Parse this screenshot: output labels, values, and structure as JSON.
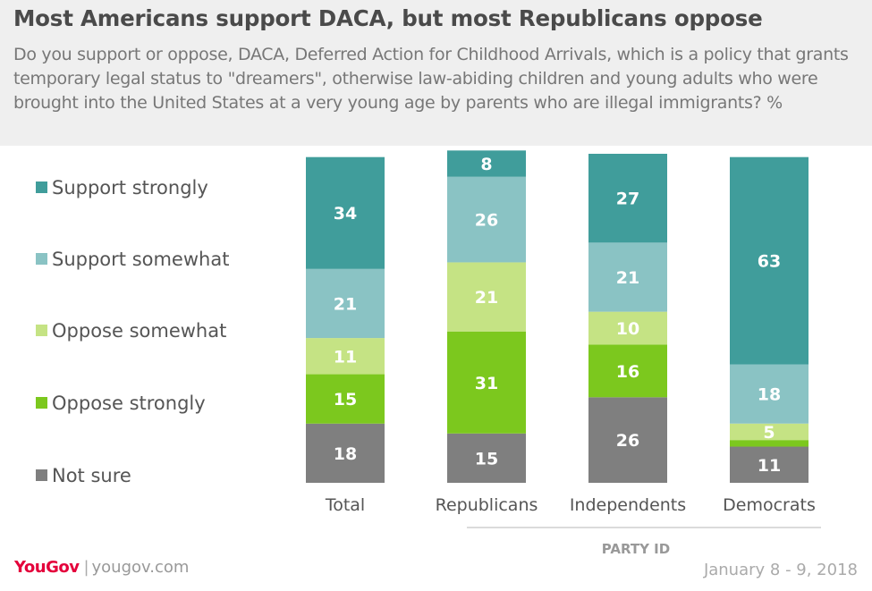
{
  "header": {
    "title": "Most Americans support DACA, but most Republicans oppose",
    "subtitle": "Do you support or oppose, DACA, Deferred Action for Childhood Arrivals, which is a policy that grants temporary legal status to \"dreamers\", otherwise law-abiding children and young adults who were brought into the United States at a very young age by parents who are illegal immigrants? %"
  },
  "footer": {
    "brand": "YouGov",
    "separator": "|",
    "url": "yougov.com",
    "date": "January 8 - 9, 2018"
  },
  "chart_data": {
    "type": "bar",
    "stacked": true,
    "categories": [
      "Total",
      "Republicans",
      "Independents",
      "Democrats"
    ],
    "group_label": "PARTY ID",
    "grouped_categories": [
      "Republicans",
      "Independents",
      "Democrats"
    ],
    "series": [
      {
        "name": "Support strongly",
        "color": "#409d9b",
        "label_color": "#ffffff",
        "values": [
          34,
          8,
          27,
          63
        ]
      },
      {
        "name": "Support somewhat",
        "color": "#8ac3c4",
        "label_color": "#ffffff",
        "values": [
          21,
          26,
          21,
          18
        ]
      },
      {
        "name": "Oppose somewhat",
        "color": "#c5e384",
        "label_color": "#ffffff",
        "values": [
          11,
          21,
          10,
          5
        ]
      },
      {
        "name": "Oppose strongly",
        "color": "#7cc81e",
        "label_color": "#ffffff",
        "values": [
          15,
          31,
          16,
          2
        ]
      },
      {
        "name": "Not sure",
        "color": "#7f7f7f",
        "label_color": "#ffffff",
        "values": [
          18,
          15,
          26,
          11
        ]
      }
    ],
    "data_labels": [
      [
        "34",
        "8",
        "27",
        "63"
      ],
      [
        "21",
        "26",
        "21",
        "18"
      ],
      [
        "11",
        "21",
        "10",
        "5"
      ],
      [
        "15",
        "31",
        "16",
        ""
      ],
      [
        "18",
        "15",
        "26",
        "11"
      ]
    ],
    "legend_position": "left",
    "ylim": [
      0,
      100
    ],
    "grid": false
  }
}
